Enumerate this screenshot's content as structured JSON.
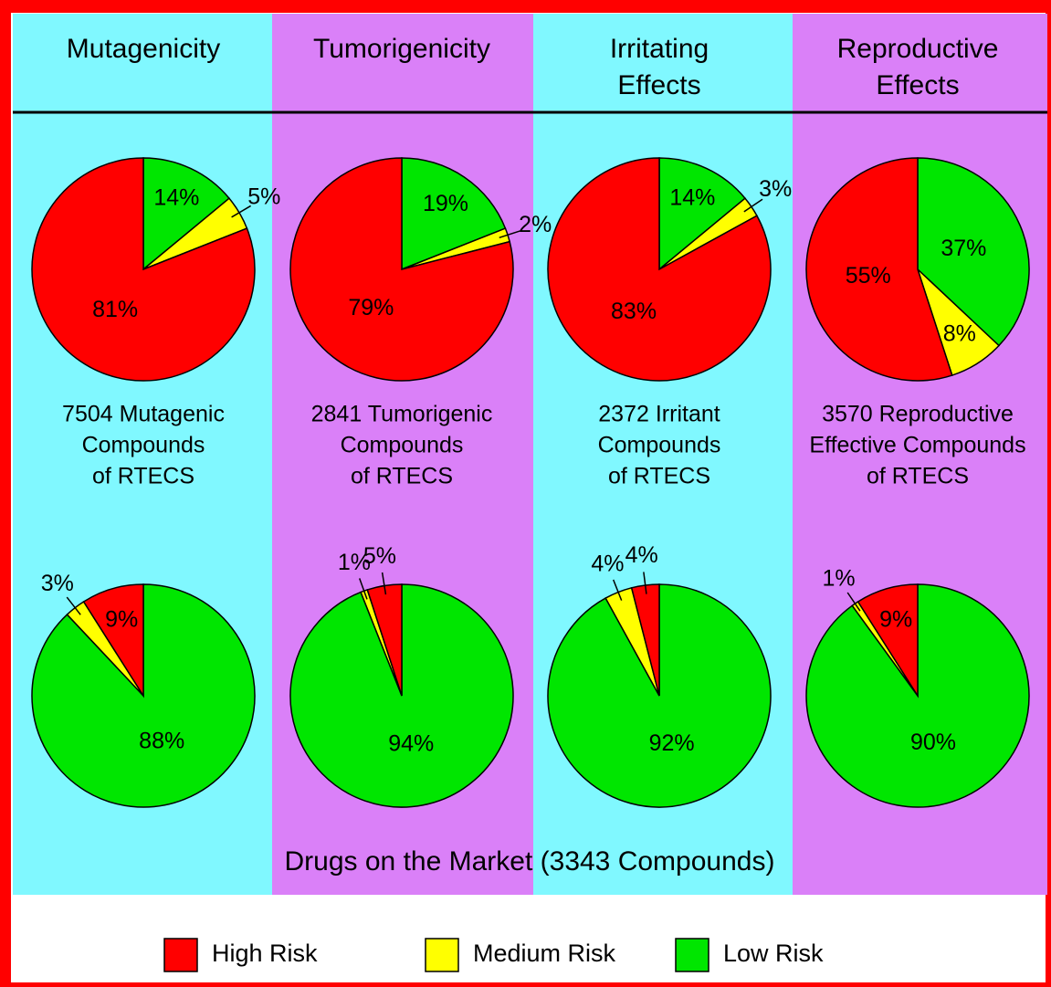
{
  "columns": [
    [
      "Mutagenicity"
    ],
    [
      "Tumorigenicity"
    ],
    [
      "Irritating",
      "Effects"
    ],
    [
      "Reproductive",
      "Effects"
    ]
  ],
  "footer": "Drugs on the Market (3343 Compounds)",
  "legend": {
    "labels": [
      "High Risk",
      "Medium Risk",
      "Low Risk"
    ],
    "colors": [
      "#ff0000",
      "#ffff00",
      "#00e600"
    ]
  },
  "chart_data": [
    {
      "type": "pie",
      "values": [
        81,
        5,
        14
      ],
      "value_labels": [
        "81%",
        "5%",
        "14%"
      ],
      "caption": [
        "7504 Mutagenic",
        "Compounds",
        "of RTECS"
      ]
    },
    {
      "type": "pie",
      "values": [
        79,
        2,
        19
      ],
      "value_labels": [
        "79%",
        "2%",
        "19%"
      ],
      "caption": [
        "2841 Tumorigenic",
        "Compounds",
        "of RTECS"
      ]
    },
    {
      "type": "pie",
      "values": [
        83,
        3,
        14
      ],
      "value_labels": [
        "83%",
        "3%",
        "14%"
      ],
      "caption": [
        "2372 Irritant",
        "Compounds",
        "of RTECS"
      ]
    },
    {
      "type": "pie",
      "values": [
        55,
        8,
        37
      ],
      "value_labels": [
        "55%",
        "8%",
        "37%"
      ],
      "caption": [
        "3570 Reproductive",
        "Effective Compounds",
        "of RTECS"
      ]
    },
    {
      "type": "pie",
      "values": [
        9,
        3,
        88
      ],
      "value_labels": [
        "9%",
        "3%",
        "88%"
      ]
    },
    {
      "type": "pie",
      "values": [
        5,
        1,
        94
      ],
      "value_labels": [
        "5%",
        "1%",
        "94%"
      ]
    },
    {
      "type": "pie",
      "values": [
        4,
        4,
        92
      ],
      "value_labels": [
        "4%",
        "4%",
        "92%"
      ]
    },
    {
      "type": "pie",
      "values": [
        9,
        1,
        90
      ],
      "value_labels": [
        "9%",
        "1%",
        "90%"
      ]
    }
  ]
}
